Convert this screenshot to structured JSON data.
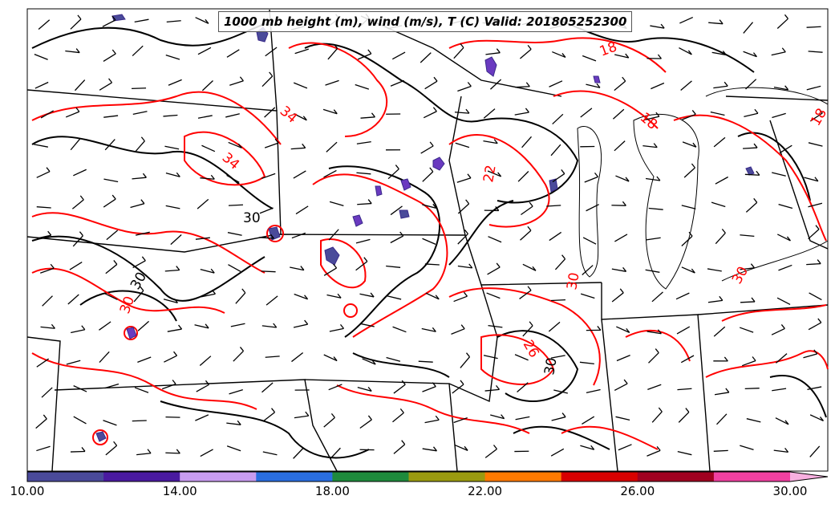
{
  "title": "1000 mb height (m), wind (m/s), T (C) Valid: 201805252300",
  "contour_labels": [
    {
      "text": "34",
      "color": "red"
    },
    {
      "text": "34",
      "color": "red"
    },
    {
      "text": "30",
      "color": "black"
    },
    {
      "text": "30",
      "color": "black"
    },
    {
      "text": "18",
      "color": "red"
    },
    {
      "text": "18",
      "color": "red"
    },
    {
      "text": "22",
      "color": "red"
    },
    {
      "text": "30",
      "color": "red"
    },
    {
      "text": "30",
      "color": "red"
    },
    {
      "text": "26",
      "color": "red"
    },
    {
      "text": "30",
      "color": "black"
    },
    {
      "text": "30",
      "color": "red"
    },
    {
      "text": "18",
      "color": "red"
    }
  ],
  "colorbar": {
    "min": 10,
    "max": 31,
    "ticks": [
      "10.00",
      "14.00",
      "18.00",
      "22.00",
      "26.00",
      "30.00"
    ],
    "tick_values": [
      10,
      14,
      18,
      22,
      26,
      30
    ],
    "colors": [
      "#4a4a9a",
      "#4a1aa0",
      "#c89cf0",
      "#2a6ee0",
      "#1e8a3c",
      "#9a9a10",
      "#ff7a00",
      "#d80000",
      "#a00020",
      "#f040a0",
      "#f8b0e0"
    ]
  }
}
